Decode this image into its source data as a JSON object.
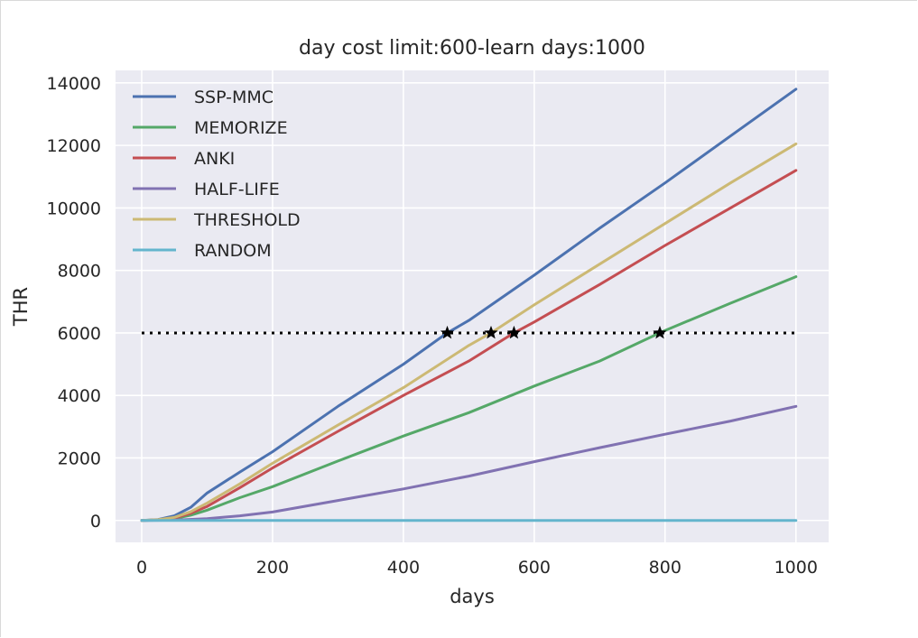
{
  "chart_data": {
    "type": "line",
    "title": "day cost limit:600-learn days:1000",
    "xlabel": "days",
    "ylabel": "THR",
    "xlim": [
      -40,
      1050
    ],
    "ylim": [
      -700,
      14400
    ],
    "xticks": [
      0,
      200,
      400,
      600,
      800,
      1000
    ],
    "yticks": [
      0,
      2000,
      4000,
      6000,
      8000,
      10000,
      12000,
      14000
    ],
    "grid": true,
    "legend_position": "top-left",
    "series": [
      {
        "name": "SSP-MMC",
        "color": "#4c72b0",
        "x": [
          0,
          25,
          50,
          75,
          100,
          150,
          200,
          300,
          400,
          467,
          500,
          600,
          700,
          800,
          900,
          1000
        ],
        "y": [
          0,
          30,
          150,
          420,
          880,
          1550,
          2200,
          3650,
          5000,
          6000,
          6400,
          7850,
          9350,
          10800,
          12300,
          13800
        ]
      },
      {
        "name": "MEMORIZE",
        "color": "#55a868",
        "x": [
          0,
          25,
          50,
          75,
          100,
          150,
          200,
          300,
          400,
          500,
          600,
          700,
          792,
          800,
          900,
          1000
        ],
        "y": [
          0,
          15,
          60,
          170,
          330,
          730,
          1080,
          1900,
          2700,
          3450,
          4300,
          5100,
          6000,
          6080,
          6950,
          7800
        ]
      },
      {
        "name": "ANKI",
        "color": "#c44e52",
        "x": [
          0,
          25,
          50,
          75,
          100,
          150,
          200,
          300,
          400,
          500,
          569,
          600,
          700,
          800,
          900,
          1000
        ],
        "y": [
          0,
          20,
          80,
          230,
          450,
          1050,
          1680,
          2850,
          4000,
          5100,
          6000,
          6350,
          7550,
          8800,
          10000,
          11200
        ]
      },
      {
        "name": "HALF-LIFE",
        "color": "#8172b2",
        "x": [
          0,
          50,
          100,
          150,
          200,
          300,
          400,
          500,
          600,
          700,
          800,
          900,
          1000
        ],
        "y": [
          0,
          10,
          60,
          150,
          270,
          640,
          1010,
          1420,
          1880,
          2330,
          2760,
          3180,
          3650
        ]
      },
      {
        "name": "THRESHOLD",
        "color": "#ccb974",
        "x": [
          0,
          25,
          50,
          75,
          100,
          150,
          200,
          300,
          400,
          500,
          534,
          600,
          700,
          800,
          900,
          1000
        ],
        "y": [
          0,
          25,
          100,
          280,
          560,
          1170,
          1830,
          3050,
          4250,
          5600,
          6000,
          6900,
          8200,
          9500,
          10800,
          12050
        ]
      },
      {
        "name": "RANDOM",
        "color": "#64b5cd",
        "x": [
          0,
          1000
        ],
        "y": [
          0,
          0
        ]
      }
    ],
    "reference_line": {
      "y": 6000,
      "x_range": [
        0,
        1000
      ],
      "style": "dotted",
      "color": "#000000"
    },
    "markers": [
      {
        "x": 467,
        "y": 6000
      },
      {
        "x": 534,
        "y": 6000
      },
      {
        "x": 569,
        "y": 6000
      },
      {
        "x": 792,
        "y": 6000
      }
    ]
  }
}
